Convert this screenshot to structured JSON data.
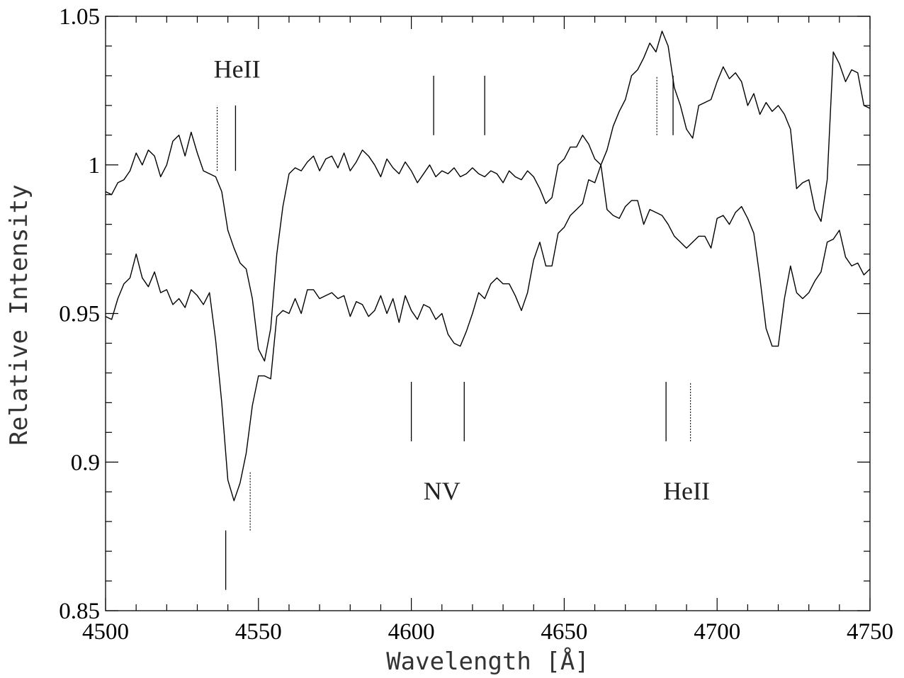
{
  "chart_data": {
    "type": "line",
    "title": "",
    "xlabel": "Wavelength [Å]",
    "ylabel": "Relative Intensity",
    "xlim": [
      4500,
      4750
    ],
    "ylim": [
      0.85,
      1.05
    ],
    "x_ticks": [
      4500,
      4550,
      4600,
      4650,
      4700,
      4750
    ],
    "x_tick_labels": [
      "4500",
      "4550",
      "4600",
      "4650",
      "4700",
      "4750"
    ],
    "y_ticks": [
      0.85,
      0.9,
      0.95,
      1.0,
      1.05
    ],
    "y_tick_labels": [
      "0.85",
      "0.9",
      "0.95",
      "1",
      "1.05"
    ],
    "grid": false,
    "legend": "none",
    "series": [
      {
        "x": [
          4500,
          4502,
          4504,
          4506,
          4508,
          4510,
          4512,
          4514,
          4516,
          4518,
          4520,
          4522,
          4524,
          4526,
          4528,
          4530,
          4532,
          4534,
          4536,
          4538,
          4540,
          4542,
          4544,
          4546,
          4548,
          4550,
          4552,
          4554,
          4556,
          4558,
          4560,
          4562,
          4564,
          4566,
          4568,
          4570,
          4572,
          4574,
          4576,
          4578,
          4580,
          4582,
          4584,
          4586,
          4588,
          4590,
          4592,
          4594,
          4596,
          4598,
          4600,
          4602,
          4604,
          4606,
          4608,
          4610,
          4612,
          4614,
          4616,
          4618,
          4620,
          4622,
          4624,
          4626,
          4628,
          4630,
          4632,
          4634,
          4636,
          4638,
          4640,
          4642,
          4644,
          4646,
          4648,
          4650,
          4652,
          4654,
          4656,
          4658,
          4660,
          4662,
          4664,
          4666,
          4668,
          4670,
          4672,
          4674,
          4676,
          4678,
          4680,
          4682,
          4684,
          4686,
          4688,
          4690,
          4692,
          4694,
          4696,
          4698,
          4700,
          4702,
          4704,
          4706,
          4708,
          4710,
          4712,
          4714,
          4716,
          4718,
          4720,
          4722,
          4724,
          4726,
          4728,
          4730,
          4732,
          4734,
          4736,
          4738,
          4740,
          4742,
          4744,
          4746,
          4748,
          4750
        ],
        "y": [
          0.991,
          0.99,
          0.994,
          0.995,
          0.998,
          1.004,
          1.0,
          1.005,
          1.003,
          0.996,
          1.0,
          1.008,
          1.01,
          1.003,
          1.011,
          1.004,
          0.998,
          0.997,
          0.996,
          0.991,
          0.978,
          0.972,
          0.967,
          0.965,
          0.955,
          0.938,
          0.934,
          0.945,
          0.97,
          0.986,
          0.997,
          0.999,
          0.998,
          1.001,
          1.003,
          0.998,
          1.002,
          1.003,
          0.999,
          1.004,
          0.998,
          1.001,
          1.005,
          1.003,
          1.0,
          0.996,
          1.002,
          0.999,
          0.997,
          1.001,
          0.998,
          0.994,
          0.997,
          1.0,
          0.996,
          0.998,
          0.997,
          0.999,
          0.996,
          0.997,
          0.999,
          0.997,
          0.996,
          0.998,
          0.997,
          0.994,
          0.998,
          0.996,
          0.995,
          0.998,
          0.996,
          0.992,
          0.987,
          0.989,
          1.0,
          1.002,
          1.006,
          1.006,
          1.01,
          1.007,
          1.002,
          1.0,
          1.005,
          1.013,
          1.018,
          1.022,
          1.03,
          1.032,
          1.036,
          1.041,
          1.038,
          1.045,
          1.04,
          1.026,
          1.02,
          1.012,
          1.009,
          1.02,
          1.021,
          1.022,
          1.028,
          1.033,
          1.029,
          1.031,
          1.028,
          1.02,
          1.024,
          1.017,
          1.021,
          1.018,
          1.02,
          1.017,
          1.012,
          0.992,
          0.994,
          0.995,
          0.985,
          0.981,
          0.995,
          1.038,
          1.034,
          1.028,
          1.032,
          1.031,
          1.02,
          1.019
        ],
        "color": "#000000"
      },
      {
        "x": [
          4500,
          4502,
          4504,
          4506,
          4508,
          4510,
          4512,
          4514,
          4516,
          4518,
          4520,
          4522,
          4524,
          4526,
          4528,
          4530,
          4532,
          4534,
          4536,
          4538,
          4540,
          4542,
          4544,
          4546,
          4548,
          4550,
          4552,
          4554,
          4556,
          4558,
          4560,
          4562,
          4564,
          4566,
          4568,
          4570,
          4572,
          4574,
          4576,
          4578,
          4580,
          4582,
          4584,
          4586,
          4588,
          4590,
          4592,
          4594,
          4596,
          4598,
          4600,
          4602,
          4604,
          4606,
          4608,
          4610,
          4612,
          4614,
          4616,
          4618,
          4620,
          4622,
          4624,
          4626,
          4628,
          4630,
          4632,
          4634,
          4636,
          4638,
          4640,
          4642,
          4644,
          4646,
          4648,
          4650,
          4652,
          4654,
          4656,
          4658,
          4660,
          4662,
          4664,
          4666,
          4668,
          4670,
          4672,
          4674,
          4676,
          4678,
          4680,
          4682,
          4684,
          4686,
          4688,
          4690,
          4692,
          4694,
          4696,
          4698,
          4700,
          4702,
          4704,
          4706,
          4708,
          4710,
          4712,
          4714,
          4716,
          4718,
          4720,
          4722,
          4724,
          4726,
          4728,
          4730,
          4732,
          4734,
          4736,
          4738,
          4740,
          4742,
          4744,
          4746,
          4748,
          4750
        ],
        "y": [
          0.949,
          0.948,
          0.955,
          0.96,
          0.962,
          0.97,
          0.962,
          0.959,
          0.964,
          0.957,
          0.958,
          0.953,
          0.955,
          0.952,
          0.958,
          0.956,
          0.953,
          0.957,
          0.941,
          0.92,
          0.894,
          0.887,
          0.893,
          0.903,
          0.919,
          0.929,
          0.929,
          0.928,
          0.949,
          0.951,
          0.95,
          0.955,
          0.95,
          0.958,
          0.958,
          0.955,
          0.956,
          0.957,
          0.955,
          0.956,
          0.949,
          0.954,
          0.953,
          0.949,
          0.951,
          0.956,
          0.95,
          0.955,
          0.947,
          0.956,
          0.951,
          0.948,
          0.953,
          0.952,
          0.948,
          0.95,
          0.943,
          0.94,
          0.939,
          0.944,
          0.95,
          0.957,
          0.955,
          0.96,
          0.962,
          0.96,
          0.96,
          0.956,
          0.951,
          0.957,
          0.968,
          0.974,
          0.966,
          0.966,
          0.977,
          0.979,
          0.983,
          0.985,
          0.987,
          0.995,
          0.994,
          1.0,
          0.985,
          0.983,
          0.982,
          0.986,
          0.988,
          0.988,
          0.98,
          0.985,
          0.984,
          0.983,
          0.98,
          0.976,
          0.974,
          0.972,
          0.974,
          0.976,
          0.976,
          0.972,
          0.982,
          0.983,
          0.98,
          0.984,
          0.986,
          0.982,
          0.977,
          0.962,
          0.945,
          0.939,
          0.939,
          0.955,
          0.966,
          0.957,
          0.955,
          0.957,
          0.961,
          0.964,
          0.974,
          0.975,
          0.978,
          0.969,
          0.966,
          0.967,
          0.963,
          0.965
        ],
        "color": "#000000"
      }
    ],
    "annotations": [
      {
        "text": "HeII",
        "x": 4543,
        "y": 1.028
      },
      {
        "text": "NV",
        "x": 4610,
        "y": 0.886
      },
      {
        "text": "HeII",
        "x": 4690,
        "y": 0.886
      }
    ],
    "markers": [
      {
        "x": 4536.5,
        "y_from": 0.998,
        "y_to": 1.02,
        "style": "dotted"
      },
      {
        "x": 4542.5,
        "y_from": 0.998,
        "y_to": 1.02,
        "style": "solid"
      },
      {
        "x": 4607.3,
        "y_from": 1.01,
        "y_to": 1.03,
        "style": "solid"
      },
      {
        "x": 4624.0,
        "y_from": 1.01,
        "y_to": 1.03,
        "style": "solid"
      },
      {
        "x": 4680.3,
        "y_from": 1.01,
        "y_to": 1.03,
        "style": "dotted"
      },
      {
        "x": 4685.6,
        "y_from": 1.01,
        "y_to": 1.03,
        "style": "solid"
      },
      {
        "x": 4600.0,
        "y_from": 0.907,
        "y_to": 0.927,
        "style": "solid"
      },
      {
        "x": 4617.3,
        "y_from": 0.907,
        "y_to": 0.927,
        "style": "solid"
      },
      {
        "x": 4683.3,
        "y_from": 0.907,
        "y_to": 0.927,
        "style": "solid"
      },
      {
        "x": 4691.3,
        "y_from": 0.907,
        "y_to": 0.927,
        "style": "dotted"
      },
      {
        "x": 4547.3,
        "y_from": 0.877,
        "y_to": 0.897,
        "style": "dotted"
      },
      {
        "x": 4539.3,
        "y_from": 0.857,
        "y_to": 0.877,
        "style": "solid"
      }
    ]
  }
}
